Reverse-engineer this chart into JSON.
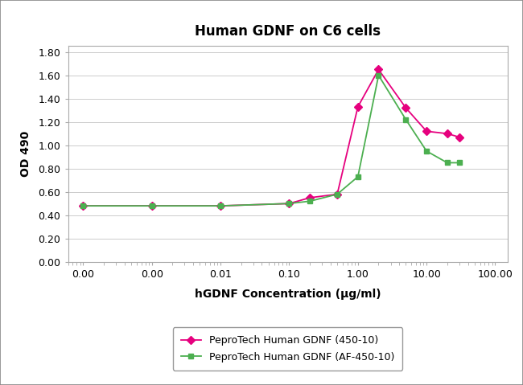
{
  "title": "Human GDNF on C6 cells",
  "xlabel": "hGDNF Concentration (μg/ml)",
  "ylabel": "OD 490",
  "series1_label": "PeproTech Human GDNF (450-10)",
  "series2_label": "PeproTech Human GDNF (AF-450-10)",
  "series1_color": "#e6007e",
  "series2_color": "#4caf50",
  "series1_x": [
    0.0001,
    0.001,
    0.01,
    0.1,
    0.2,
    0.5,
    1.0,
    2.0,
    5.0,
    10.0,
    20.0,
    30.0
  ],
  "series1_y": [
    0.48,
    0.48,
    0.48,
    0.5,
    0.55,
    0.58,
    1.33,
    1.65,
    1.32,
    1.12,
    1.1,
    1.07
  ],
  "series2_x": [
    0.0001,
    0.001,
    0.01,
    0.1,
    0.2,
    0.5,
    1.0,
    2.0,
    5.0,
    10.0,
    20.0,
    30.0
  ],
  "series2_y": [
    0.48,
    0.48,
    0.48,
    0.5,
    0.52,
    0.58,
    0.73,
    1.6,
    1.22,
    0.95,
    0.85,
    0.85
  ],
  "ylim": [
    0.0,
    1.85
  ],
  "yticks": [
    0.0,
    0.2,
    0.4,
    0.6,
    0.8,
    1.0,
    1.2,
    1.4,
    1.6,
    1.8
  ],
  "xtick_positions": [
    0.0001,
    0.001,
    0.01,
    0.1,
    1.0,
    10.0,
    100.0
  ],
  "xtick_labels": [
    "0.00",
    "0.00",
    "0.01",
    "0.10",
    "1.00",
    "10.00",
    "100.00"
  ],
  "background_color": "#ffffff",
  "grid_color": "#cccccc",
  "title_fontsize": 12,
  "axis_label_fontsize": 10,
  "tick_fontsize": 9
}
